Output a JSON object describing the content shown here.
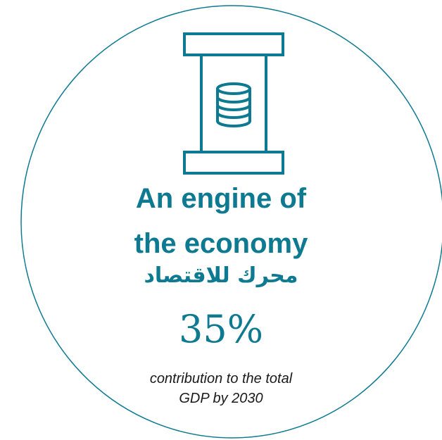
{
  "colors": {
    "accent": "#0d7a91",
    "text": "#1a1a1a",
    "outline": "#0d7a91"
  },
  "icon": {
    "name": "pillar-database-icon"
  },
  "headline": {
    "line1": "An engine of",
    "line2": "the economy"
  },
  "arabic_headline": "محرك للاقتصاد",
  "stat": {
    "value": "35%",
    "caption_line1": "contribution to the total",
    "caption_line2": "GDP by 2030"
  }
}
